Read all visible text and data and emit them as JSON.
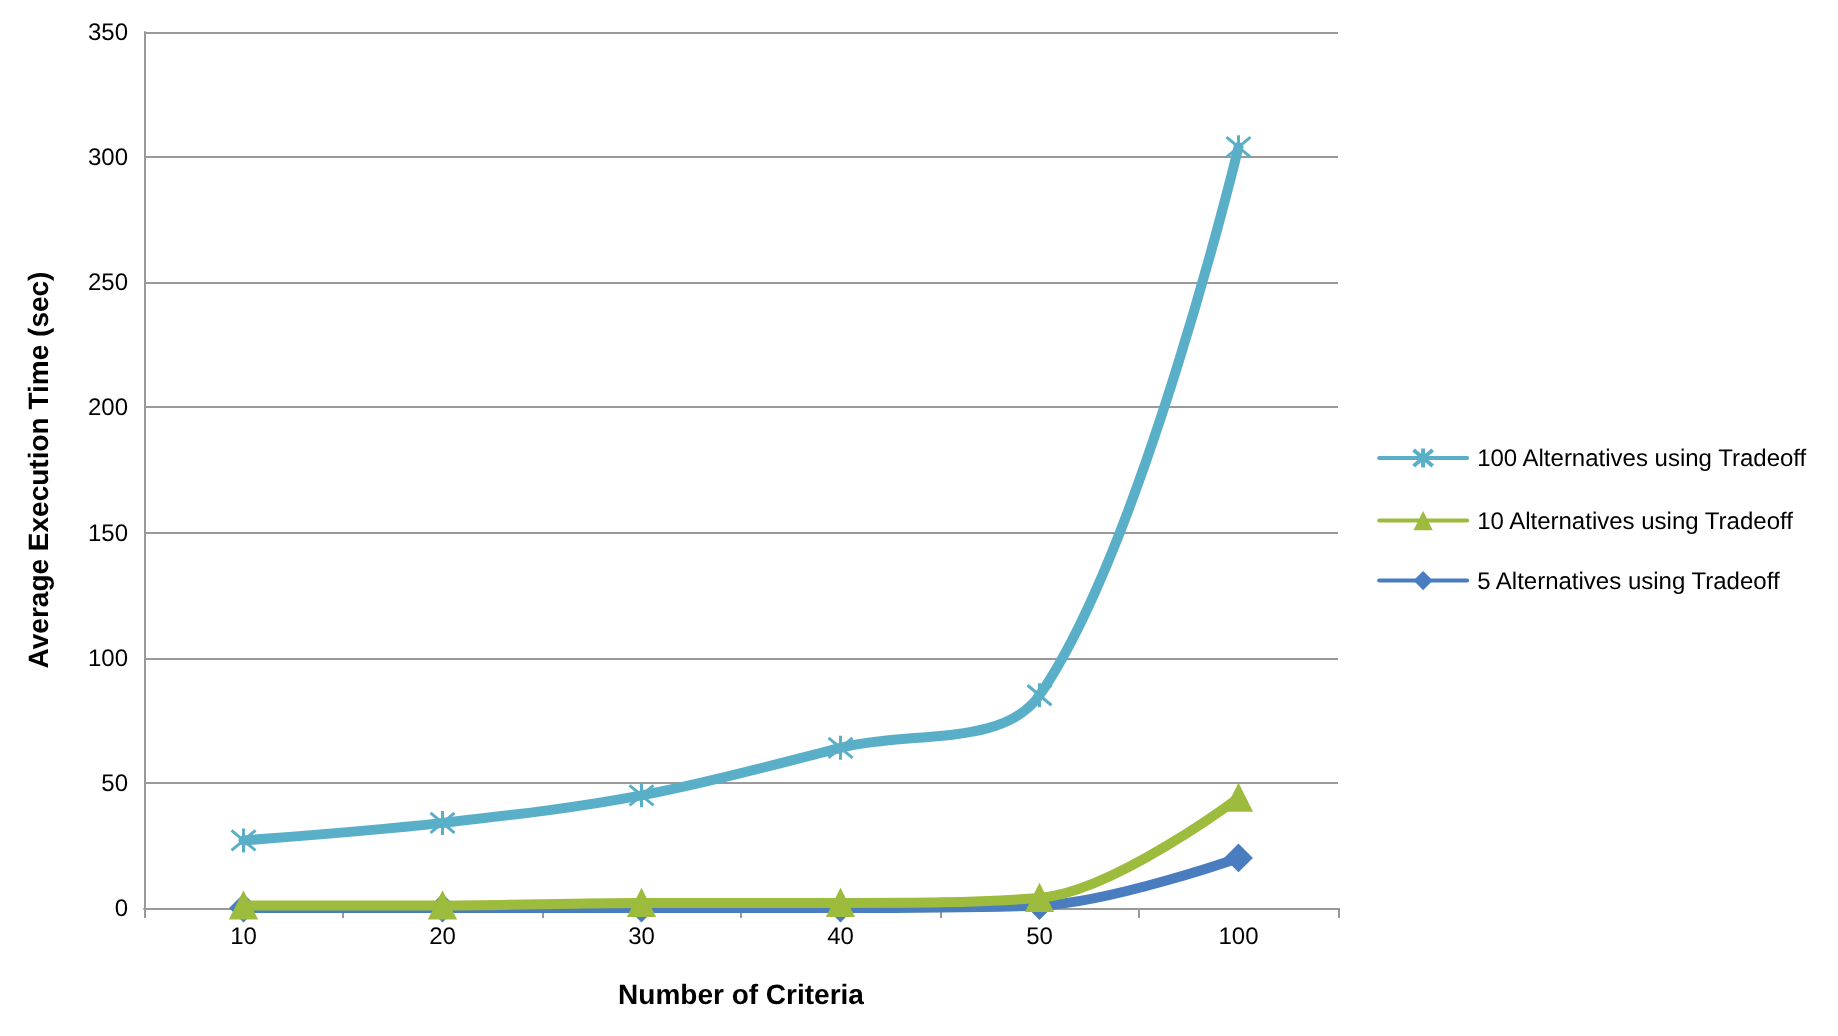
{
  "chart_data": {
    "type": "line",
    "xlabel": "Number of Criteria",
    "ylabel": "Average Execution Time (sec)",
    "categories": [
      "10",
      "20",
      "30",
      "40",
      "50",
      "100"
    ],
    "series": [
      {
        "name": "100 Alternatives using Tradeoff",
        "color": "#5aafc8",
        "marker": "cross",
        "values": [
          27,
          34,
          45,
          64,
          85,
          304
        ]
      },
      {
        "name": "10 Alternatives using Tradeoff",
        "color": "#9dbb3c",
        "marker": "triangle",
        "values": [
          1,
          1,
          2,
          2,
          4,
          44
        ]
      },
      {
        "name": "5 Alternatives using Tradeoff",
        "color": "#4a7cc0",
        "marker": "diamond",
        "values": [
          0,
          0,
          0,
          0,
          1,
          20
        ]
      }
    ],
    "ylim": [
      0,
      350
    ],
    "yticks": [
      0,
      50,
      100,
      150,
      200,
      250,
      300,
      350
    ],
    "grid": "y",
    "legend": "right"
  }
}
